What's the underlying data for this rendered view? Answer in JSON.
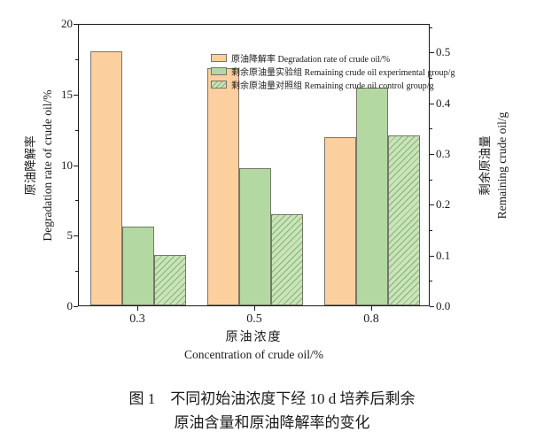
{
  "chart_data": {
    "type": "bar",
    "categories": [
      "0.3",
      "0.5",
      "0.8"
    ],
    "series": [
      {
        "name": "原油降解率 Degradation rate of crude oil/%",
        "axis": "left",
        "unit": "%",
        "color": "#fbcf9e",
        "hatch": false,
        "values": [
          18.0,
          16.8,
          11.9
        ]
      },
      {
        "name": "剩余原油量实验组 Remaining crude oil experimental group/g",
        "axis": "right",
        "unit": "g",
        "color": "#b3d8a1",
        "hatch": false,
        "values": [
          0.155,
          0.27,
          0.43
        ]
      },
      {
        "name": "剩余原油量对照组 Remaining crude oil control group/g",
        "axis": "right",
        "unit": "g",
        "color": "#cae4ba",
        "hatch": true,
        "values": [
          0.1,
          0.18,
          0.335
        ]
      }
    ],
    "left_axis": {
      "label_zh": "原油降解率",
      "label_en": "Degradation rate of crude oil/%",
      "range": [
        0,
        20
      ],
      "major_ticks": [
        0,
        5,
        10,
        15,
        20
      ],
      "minor_ticks": [
        2.5,
        7.5,
        12.5,
        17.5
      ]
    },
    "right_axis": {
      "label_zh": "剩余原油量",
      "label_en": "Remaining crude oil/g",
      "range": [
        0,
        0.5567
      ],
      "major_ticks": [
        0.0,
        0.1,
        0.2,
        0.3,
        0.4,
        0.5
      ],
      "minor_ticks": [
        0.05,
        0.15,
        0.25,
        0.35,
        0.45,
        0.55
      ]
    },
    "x_axis": {
      "label_zh": "原油浓度",
      "label_en": "Concentration of crude oil/%"
    },
    "legend_position": "upper-inside",
    "grid": false
  },
  "colors": {
    "bar_border": "#76766a",
    "hatch_line": "#85b274",
    "axis": "#1a1a1a"
  },
  "caption": {
    "line1": "图 1　不同初始油浓度下经 10 d 培养后剩余",
    "line2": "原油含量和原油降解率的变化"
  }
}
